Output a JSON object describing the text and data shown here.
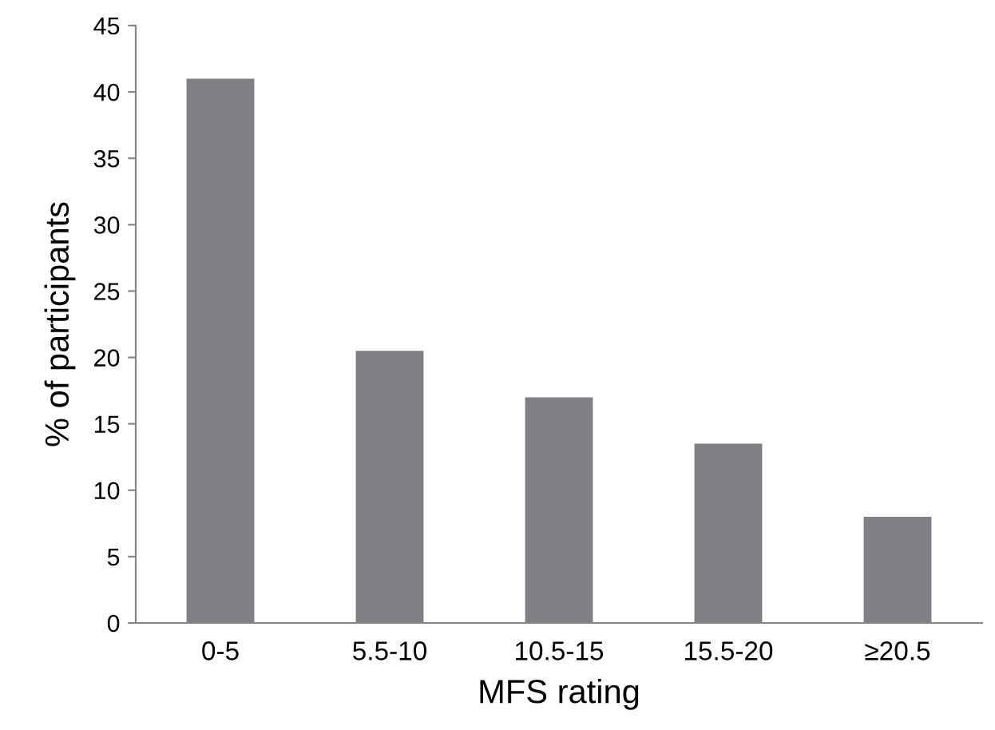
{
  "chart_data": {
    "type": "bar",
    "xlabel": "MFS rating",
    "ylabel": "% of participants",
    "categories": [
      "0-5",
      "5.5-10",
      "10.5-15",
      "15.5-20",
      "≥20.5"
    ],
    "values": [
      41,
      20.5,
      17,
      13.5,
      8
    ],
    "color": "#7f7f84",
    "ylim": [
      0,
      45
    ],
    "yticks": [
      0,
      5,
      10,
      15,
      20,
      25,
      30,
      35,
      40,
      45
    ],
    "grid": false,
    "legend": false
  }
}
